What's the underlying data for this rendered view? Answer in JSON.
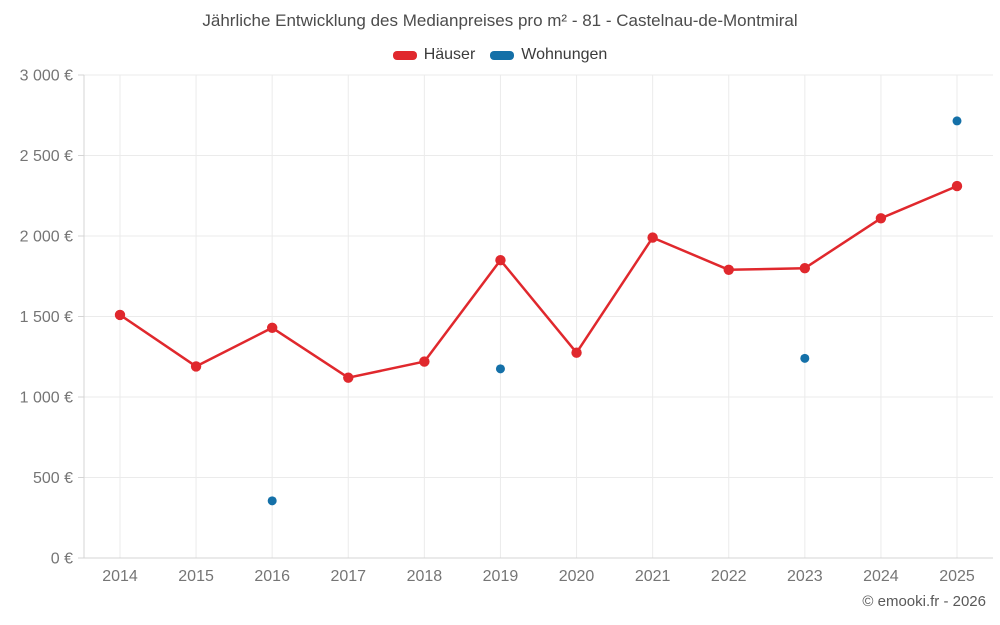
{
  "page": {
    "title": "Jährliche Entwicklung des Medianpreises pro m² - 81 - Castelnau-de-Montmiral",
    "copyright": "© emooki.fr - 2026"
  },
  "legend": {
    "items": [
      {
        "label": "Häuser",
        "color": "#e0282d"
      },
      {
        "label": "Wohnungen",
        "color": "#1470a8"
      }
    ]
  },
  "colors": {
    "haeuser_red": "#e0282d",
    "wohnungen_blue": "#1470a8",
    "gridline": "#ebebeb",
    "axis_line": "#d4d4d4",
    "tick_label": "#757575"
  },
  "chart_data": {
    "type": "line",
    "title": "Jährliche Entwicklung des Medianpreises pro m² - 81 - Castelnau-de-Montmiral",
    "categories": [
      "2014",
      "2015",
      "2016",
      "2017",
      "2018",
      "2019",
      "2020",
      "2021",
      "2022",
      "2023",
      "2024",
      "2025"
    ],
    "series": [
      {
        "name": "Häuser",
        "color": "#e0282d",
        "style": "line+points",
        "values": [
          1510,
          1190,
          1430,
          1120,
          1220,
          1850,
          1275,
          1990,
          1790,
          1800,
          2110,
          2310
        ]
      },
      {
        "name": "Wohnungen",
        "color": "#1470a8",
        "style": "points",
        "values": [
          null,
          null,
          355,
          null,
          null,
          1175,
          null,
          null,
          null,
          1240,
          null,
          2715
        ]
      }
    ],
    "xlabel": "",
    "ylabel": "",
    "ylim": [
      0,
      3000
    ],
    "y_tick_step": 500,
    "y_tick_labels": [
      "0 €",
      "500 €",
      "1 000 €",
      "1 500 €",
      "2 000 €",
      "2 500 €",
      "3 000 €"
    ],
    "grid": true,
    "legend_position": "top"
  }
}
